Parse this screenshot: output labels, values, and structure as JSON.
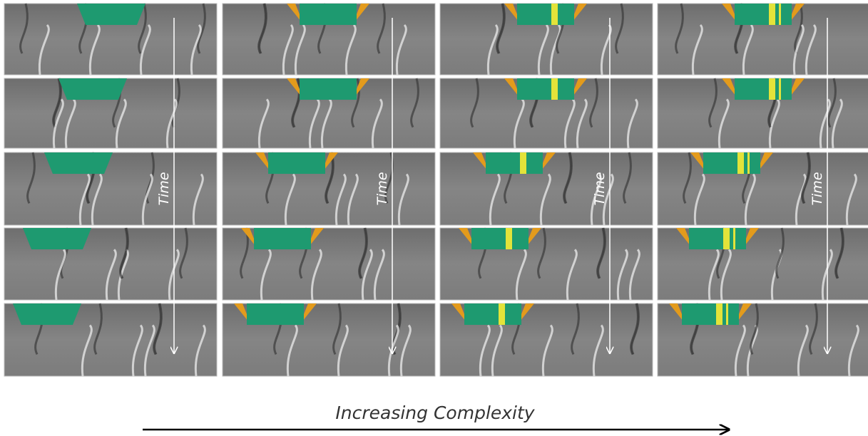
{
  "columns": [
    {
      "time_label": "Time"
    },
    {
      "time_label": "Time"
    },
    {
      "time_label": "Time"
    },
    {
      "time_label": "Time"
    }
  ],
  "x_axis_label": "Increasing Complexity"
}
